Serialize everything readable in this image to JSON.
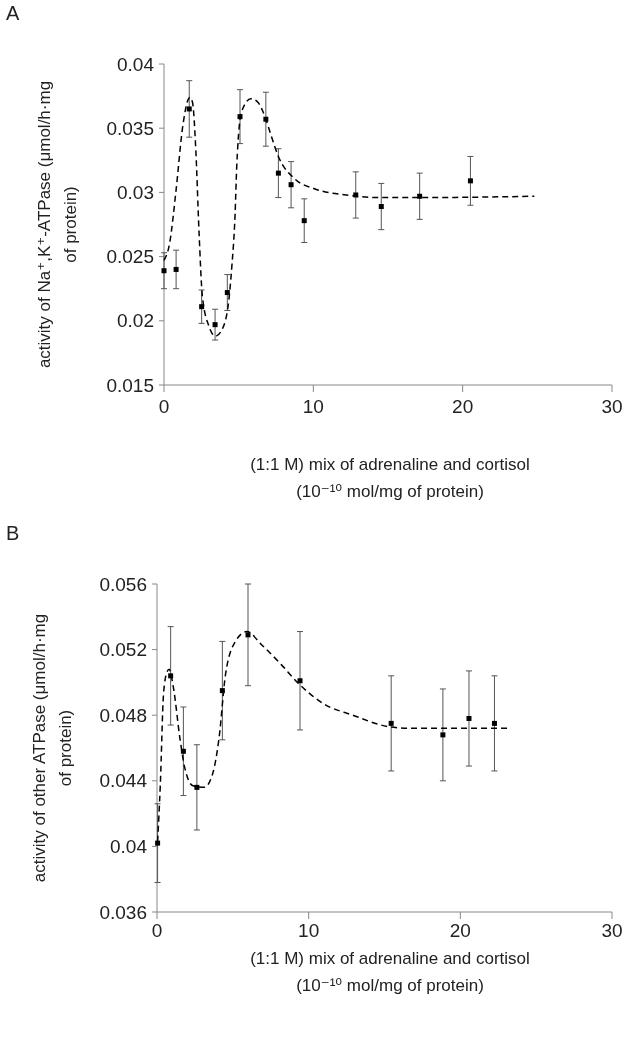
{
  "chart_data": [
    {
      "type": "scatter",
      "title": "A",
      "xlabel": "(1:1 M) mix of adrenaline and cortisol (10⁻¹⁰ mol/mg of protein)",
      "ylabel": "activity of Na⁺,K⁺-ATPase (μmol/h·mg of protein)",
      "xlim": [
        0,
        30
      ],
      "xticks": [
        0,
        10,
        20,
        30
      ],
      "ylim": [
        0.015,
        0.04
      ],
      "yticks": [
        0.015,
        0.02,
        0.025,
        0.03,
        0.035,
        0.04
      ],
      "series": [
        {
          "type": "scatter",
          "color": "#000000",
          "marker": "square",
          "x": [
            0,
            0.81,
            1.69,
            2.52,
            3.42,
            4.24,
            5.09,
            6.82,
            7.66,
            8.51,
            9.39,
            12.84,
            14.55,
            17.12,
            20.52
          ],
          "values": [
            0.0239,
            0.024,
            0.0365,
            0.0211,
            0.0197,
            0.0222,
            0.0359,
            0.0357,
            0.0315,
            0.0306,
            0.0278,
            0.0298,
            0.0289,
            0.0297,
            0.0309
          ],
          "errors": [
            0.0014,
            0.0015,
            0.0022,
            0.0013,
            0.0012,
            0.0014,
            0.0021,
            0.0021,
            0.0019,
            0.0018,
            0.0017,
            0.0018,
            0.0018,
            0.0018,
            0.0019
          ]
        },
        {
          "type": "line",
          "color": "#000000",
          "marker": "none",
          "line_style": "dashed",
          "x": [
            0,
            0.37,
            0.81,
            1.25,
            1.73,
            1.91,
            2.13,
            2.35,
            2.57,
            3.0,
            3.45,
            3.88,
            4.32,
            4.54,
            4.76,
            4.87,
            5.2,
            5.82,
            6.3,
            6.82,
            7.18,
            7.66,
            8.71,
            10.03,
            12.2,
            14.4,
            17.3,
            24.8
          ],
          "values": [
            0.0247,
            0.026,
            0.0302,
            0.0351,
            0.0374,
            0.037,
            0.0333,
            0.0268,
            0.0219,
            0.0196,
            0.0188,
            0.0193,
            0.0214,
            0.0242,
            0.0283,
            0.032,
            0.0363,
            0.0373,
            0.037,
            0.0357,
            0.0344,
            0.0328,
            0.0311,
            0.0303,
            0.0298,
            0.0296,
            0.0296,
            0.0297
          ]
        }
      ]
    },
    {
      "type": "scatter",
      "title": "B",
      "xlabel": "(1:1 M) mix of adrenaline and cortisol (10⁻¹⁰ mol/mg of protein)",
      "ylabel": "activity of other ATPase (μmol/h·mg of protein)",
      "xlim": [
        0,
        30
      ],
      "xticks": [
        0,
        10,
        20,
        30
      ],
      "ylim": [
        0.036,
        0.056
      ],
      "yticks": [
        0.036,
        0.04,
        0.044,
        0.048,
        0.052,
        0.056
      ],
      "series": [
        {
          "type": "scatter",
          "color": "#000000",
          "marker": "square",
          "x": [
            0.04,
            0.9,
            1.74,
            2.63,
            4.31,
            6.0,
            9.43,
            15.44,
            18.85,
            20.57,
            22.25
          ],
          "values": [
            0.0402,
            0.0504,
            0.0458,
            0.0436,
            0.0495,
            0.0529,
            0.0501,
            0.0475,
            0.0468,
            0.0478,
            0.0475
          ],
          "errors": [
            0.0024,
            0.003,
            0.0027,
            0.0026,
            0.003,
            0.0031,
            0.003,
            0.0029,
            0.0028,
            0.0029,
            0.0029
          ]
        },
        {
          "type": "line",
          "color": "#000000",
          "marker": "none",
          "line_style": "dashed",
          "x": [
            0.04,
            0.22,
            0.43,
            0.65,
            0.8,
            1.08,
            1.51,
            1.83,
            2.37,
            3.12,
            3.66,
            4.09,
            4.52,
            5.17,
            5.92,
            6.89,
            8.18,
            9.26,
            10.98,
            12.92,
            15.29,
            16.8,
            18.95,
            23.2
          ],
          "values": [
            0.0403,
            0.0438,
            0.0493,
            0.0506,
            0.0508,
            0.0497,
            0.0466,
            0.0448,
            0.0437,
            0.0436,
            0.0444,
            0.0466,
            0.0505,
            0.0525,
            0.0531,
            0.0523,
            0.0511,
            0.05,
            0.0487,
            0.048,
            0.0473,
            0.0472,
            0.0472,
            0.0472
          ]
        }
      ]
    }
  ]
}
